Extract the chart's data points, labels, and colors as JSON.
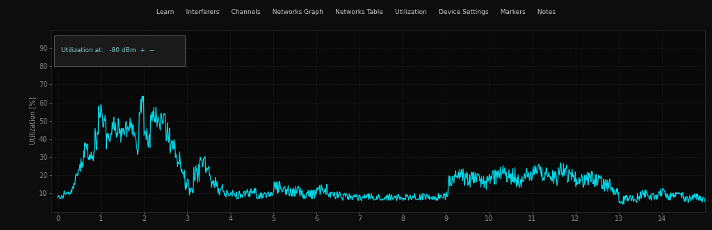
{
  "background_color": "#0d0d0d",
  "plot_bg_color": "#080808",
  "line_color": "#00d8e8",
  "grid_color": "#2a2a2a",
  "tick_color": "#888888",
  "text_color": "#888888",
  "ylabel": "Utilization [%]",
  "yticks": [
    10,
    20,
    30,
    40,
    50,
    60,
    70,
    80,
    90
  ],
  "xticks": [
    0,
    1,
    2,
    3,
    4,
    5,
    6,
    7,
    8,
    9,
    10,
    11,
    12,
    13,
    14
  ],
  "xlim": [
    -0.15,
    15.0
  ],
  "ylim": [
    0,
    100
  ],
  "toolbar_bg": "#1c1c1c",
  "toolbar_text_color": "#cccccc",
  "annot_bg": "#1a1a1a",
  "annot_border": "#555555",
  "annot_text_color": "#88cccc"
}
